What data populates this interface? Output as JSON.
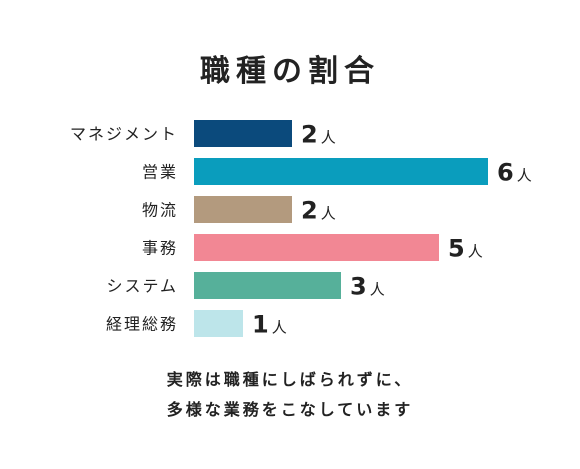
{
  "chart_data": {
    "type": "bar",
    "orientation": "horizontal",
    "title": "職種の割合",
    "categories": [
      "マネジメント",
      "営業",
      "物流",
      "事務",
      "システム",
      "経理総務"
    ],
    "values": [
      2,
      6,
      2,
      5,
      3,
      1
    ],
    "unit": "人",
    "colors": [
      "#0b4a7c",
      "#0a9dbd",
      "#b39a7e",
      "#f28794",
      "#56b09a",
      "#bde5ea"
    ],
    "xlabel": "",
    "ylabel": "",
    "xlim": [
      0,
      6
    ],
    "grid": false,
    "legend": "none"
  },
  "caption": {
    "line1": "実際は職種にしばられずに、",
    "line2": "多様な業務をこなしています"
  }
}
